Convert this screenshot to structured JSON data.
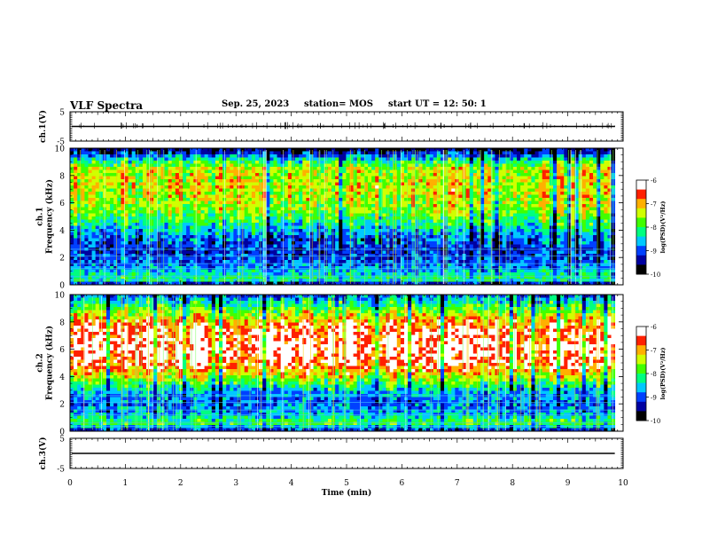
{
  "header": {
    "title": "VLF Spectra",
    "date": "Sep. 25, 2023",
    "station": "station= MOS",
    "start": "start  UT =   12: 50: 1"
  },
  "colors": {
    "spectrum": [
      "#000000",
      "#0000a0",
      "#0040ff",
      "#00c8ff",
      "#00ff80",
      "#40ff00",
      "#d0ff00",
      "#ffb000",
      "#ff2000",
      "#ffffff"
    ]
  },
  "chart_data": [
    {
      "type": "line",
      "name": "ch1-waveform",
      "ylabel": "ch.1(V)",
      "ylim": [
        -5,
        5
      ],
      "yticks": [
        "5",
        "-5"
      ],
      "trace_level": 0
    },
    {
      "type": "heatmap",
      "name": "ch1-spectrogram",
      "ylabel": "ch.1\nFrequency (kHz)",
      "ylim": [
        0,
        10
      ],
      "yticks": [
        "0",
        "2",
        "4",
        "6",
        "8",
        "10"
      ],
      "x_end_min": 9.85,
      "colorbar": {
        "label": "log(PSD)(V²/Hz)",
        "range": [
          -10,
          -6
        ],
        "ticks": [
          "-6",
          "-7",
          "-8",
          "-9",
          "-10"
        ]
      },
      "mean_log_psd_profile": [
        {
          "f": 0.0,
          "v": -9.6
        },
        {
          "f": 0.4,
          "v": -8.0
        },
        {
          "f": 0.8,
          "v": -8.4
        },
        {
          "f": 1.5,
          "v": -8.9
        },
        {
          "f": 2.5,
          "v": -9.2
        },
        {
          "f": 3.5,
          "v": -8.9
        },
        {
          "f": 4.5,
          "v": -8.2
        },
        {
          "f": 5.5,
          "v": -7.6
        },
        {
          "f": 7.0,
          "v": -7.3
        },
        {
          "f": 8.5,
          "v": -7.4
        },
        {
          "f": 9.2,
          "v": -8.4
        },
        {
          "f": 10.0,
          "v": -9.9
        }
      ]
    },
    {
      "type": "heatmap",
      "name": "ch2-spectrogram",
      "ylabel": "ch.2\nFrequency (kHz)",
      "ylim": [
        0,
        10
      ],
      "yticks": [
        "0",
        "2",
        "4",
        "6",
        "8",
        "10"
      ],
      "x_end_min": 9.85,
      "colorbar": {
        "label": "log(PSD)(V²/Hz)",
        "range": [
          -10,
          -6
        ],
        "ticks": [
          "-6",
          "-7",
          "-8",
          "-9",
          "-10"
        ]
      },
      "mean_log_psd_profile": [
        {
          "f": 0.0,
          "v": -9.4
        },
        {
          "f": 0.6,
          "v": -7.9
        },
        {
          "f": 1.2,
          "v": -8.6
        },
        {
          "f": 2.0,
          "v": -8.9
        },
        {
          "f": 3.0,
          "v": -8.6
        },
        {
          "f": 4.0,
          "v": -7.4
        },
        {
          "f": 5.0,
          "v": -6.5
        },
        {
          "f": 6.0,
          "v": -6.3
        },
        {
          "f": 7.5,
          "v": -6.5
        },
        {
          "f": 8.5,
          "v": -7.4
        },
        {
          "f": 9.5,
          "v": -8.5
        },
        {
          "f": 10.0,
          "v": -9.0
        }
      ]
    },
    {
      "type": "line",
      "name": "ch3-waveform",
      "ylabel": "ch.3(V)",
      "ylim": [
        -5,
        5
      ],
      "yticks": [
        "5",
        "-5"
      ],
      "trace_level": 0
    }
  ],
  "xaxis": {
    "label": "Time (min)",
    "xlim": [
      0,
      10
    ],
    "ticks": [
      "0",
      "1",
      "2",
      "3",
      "4",
      "5",
      "6",
      "7",
      "8",
      "9",
      "10"
    ]
  }
}
